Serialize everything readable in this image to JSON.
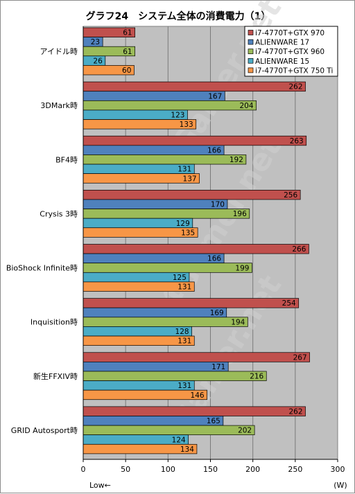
{
  "chart_data": {
    "type": "bar",
    "orientation": "horizontal",
    "title": "グラフ24　システム全体の消費電力（1）",
    "categories": [
      "アイドル時",
      "3DMark時",
      "BF4時",
      "Crysis 3時",
      "BioShock Infinite時",
      "Inquisition時",
      "新生FFXIV時",
      "GRID Autosport時"
    ],
    "series": [
      {
        "name": "i7-4770T+GTX 970",
        "color": "#c0504d",
        "values": [
          61,
          262,
          263,
          256,
          266,
          254,
          267,
          262
        ]
      },
      {
        "name": "ALIENWARE 17",
        "color": "#4f81bd",
        "values": [
          23,
          167,
          166,
          170,
          166,
          169,
          171,
          165
        ]
      },
      {
        "name": "i7-4770T+GTX 960",
        "color": "#9bbb59",
        "values": [
          61,
          204,
          192,
          196,
          199,
          194,
          216,
          202
        ]
      },
      {
        "name": "ALIENWARE 15",
        "color": "#4bacc6",
        "values": [
          26,
          123,
          131,
          129,
          125,
          128,
          131,
          124
        ]
      },
      {
        "name": "i7-4770T+GTX 750 Ti",
        "color": "#f79646",
        "values": [
          60,
          133,
          137,
          135,
          131,
          131,
          146,
          134
        ]
      }
    ],
    "xlim": [
      0,
      300
    ],
    "xticks": [
      "0",
      "50",
      "100",
      "150",
      "200",
      "250",
      "300"
    ],
    "xlabel": "(W)",
    "direction_note": "Low←",
    "grid": true,
    "legend_position": "top-right",
    "plot_background": "#c0c0c0",
    "watermark": "4Gamer.net"
  }
}
